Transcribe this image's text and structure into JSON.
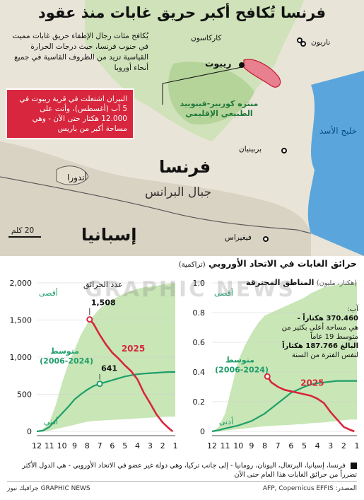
{
  "title": "فرنسا تُكافح أكبر حريق غابات منذ عقود",
  "intro": "يُكافح مئات رجال الإطفاء حريق غابات مميت في جنوب فرنسا، حيث درجات الحرارة القياسية تزيد من الظروف القاسية في جميع أنحاء أوروبا",
  "callout": "النيران اشتعلت في قرية ريبوت في 5 آب (أغسطس)، وأتت على 12.000 هكتار حتى الآن - وهي مساحة أكبر من باريس",
  "map_labels": {
    "carcassonne": "كاركاسون",
    "narbonne": "ناربون",
    "ribaute": "ريبوت",
    "park": "منتزه كوربير-فينوييد الطبيعي الإقليمي",
    "gulf": "خليج الأسد",
    "perpignan": "بربينيان",
    "france": "فرنسا",
    "andorra": "أندورا",
    "pyrenees": "جبال البرانس",
    "spain": "إسبانيا",
    "figueres": "فيغيراس",
    "scale": "20 كلم"
  },
  "section_title": "حرائق الغابات في الاتحاد الأوروبي",
  "section_sub": "(تراكمية)",
  "watermark": "GRAPHIC NEWS",
  "colors": {
    "accent": "#d7263d",
    "avg": "#1e9e6a",
    "band": "#c8e6b6",
    "map_land": "#e9e4d8",
    "map_green": "#bfd9a8",
    "sea": "#5aa6dc"
  },
  "chart_data": [
    {
      "type": "line",
      "title": "عدد الحرائق",
      "x": [
        1,
        2,
        3,
        4,
        5,
        6,
        7,
        8,
        9,
        10,
        11,
        12
      ],
      "xlabel": "",
      "ylabel": "",
      "ylim": [
        0,
        2000
      ],
      "yticks": [
        0,
        500,
        1000,
        1500,
        2000
      ],
      "yticklabels": [
        "0",
        "500",
        "1,000",
        "1,500",
        "2,000"
      ],
      "band_labels": {
        "max": "أقصى",
        "min": "أدنى"
      },
      "avg_label": "متوسط",
      "avg_years": "(2006-2024)",
      "series_2025_label": "2025",
      "annotations": {
        "value_2025": "1,508",
        "value_avg": "641"
      },
      "series": [
        {
          "name": "أقصى",
          "x": [
            1,
            1.5,
            2,
            2.5,
            3,
            3.5,
            4,
            4.5,
            5,
            5.5,
            6,
            6.5,
            7,
            7.5,
            8,
            8.5,
            9,
            9.5,
            10,
            10.5,
            11,
            11.5,
            12
          ],
          "values": [
            2000,
            1990,
            1980,
            1960,
            1950,
            1940,
            1920,
            1890,
            1860,
            1820,
            1770,
            1720,
            1650,
            1560,
            1450,
            1300,
            1100,
            900,
            650,
            350,
            120,
            30,
            0
          ]
        },
        {
          "name": "أدنى",
          "x": [
            1,
            1.5,
            2,
            2.5,
            3,
            3.5,
            4,
            4.5,
            5,
            5.5,
            6,
            6.5,
            7,
            7.5,
            8,
            8.5,
            9,
            9.5,
            10,
            10.5,
            11,
            11.5,
            12
          ],
          "values": [
            200,
            200,
            195,
            190,
            185,
            180,
            175,
            170,
            165,
            160,
            155,
            150,
            145,
            140,
            130,
            110,
            90,
            70,
            50,
            30,
            10,
            0,
            0
          ]
        },
        {
          "name": "متوسط",
          "x": [
            1,
            1.5,
            2,
            2.5,
            3,
            3.5,
            4,
            4.5,
            5,
            5.5,
            6,
            6.5,
            7,
            7.5,
            8,
            8.5,
            9,
            9.5,
            10,
            10.5,
            11,
            11.5,
            12
          ],
          "values": [
            800,
            800,
            795,
            790,
            785,
            778,
            770,
            755,
            740,
            715,
            690,
            665,
            641,
            610,
            560,
            500,
            430,
            330,
            240,
            150,
            60,
            10,
            0
          ]
        },
        {
          "name": "2025",
          "x": [
            7.8,
            7.5,
            7,
            6.5,
            6,
            5.5,
            5,
            4.5,
            4,
            3.5,
            3,
            2.5,
            2,
            1.5,
            1.2
          ],
          "values": [
            1508,
            1450,
            1300,
            1170,
            1060,
            980,
            890,
            810,
            700,
            520,
            380,
            230,
            120,
            40,
            0
          ]
        }
      ]
    },
    {
      "type": "line",
      "title": "المناطق المحترقة",
      "title_unit": "(هكتار، مليون)",
      "x": [
        1,
        2,
        3,
        4,
        5,
        6,
        7,
        8,
        9,
        10,
        11,
        12
      ],
      "xlabel": "",
      "ylabel": "",
      "ylim": [
        0,
        1.0
      ],
      "yticks": [
        0,
        0.2,
        0.4,
        0.6,
        0.8,
        1.0
      ],
      "yticklabels": [
        "0",
        "0.2",
        "0.4",
        "0.6",
        "0.8",
        "1.0"
      ],
      "band_labels": {
        "max": "أقصى",
        "min": "أدنى"
      },
      "avg_label": "متوسط",
      "avg_years": "(2006-2024)",
      "series_2025_label": "2025",
      "note": {
        "month": "آب:",
        "v1": "370.460 هكتاراً -",
        "t1": "هي مساحة أعلى بكثير من متوسط 19 عاماً",
        "v2": "البالغ 187.766 هكتاراً",
        "t2": "لنفس الفترة من السنة"
      },
      "series": [
        {
          "name": "أقصى",
          "x": [
            1,
            1.5,
            2,
            2.5,
            3,
            3.5,
            4,
            4.5,
            5,
            5.5,
            6,
            6.5,
            7,
            7.5,
            8,
            8.5,
            9,
            9.5,
            10,
            10.5,
            11,
            11.5,
            12
          ],
          "values": [
            1.0,
            1.0,
            0.99,
            0.99,
            0.98,
            0.97,
            0.95,
            0.93,
            0.9,
            0.88,
            0.86,
            0.84,
            0.82,
            0.8,
            0.78,
            0.73,
            0.66,
            0.58,
            0.48,
            0.3,
            0.12,
            0.03,
            0
          ]
        },
        {
          "name": "أدنى",
          "x": [
            1,
            1.5,
            2,
            2.5,
            3,
            3.5,
            4,
            4.5,
            5,
            5.5,
            6,
            6.5,
            7,
            7.5,
            8,
            8.5,
            9,
            9.5,
            10,
            10.5,
            11,
            11.5,
            12
          ],
          "values": [
            0.08,
            0.08,
            0.075,
            0.07,
            0.065,
            0.06,
            0.058,
            0.055,
            0.05,
            0.048,
            0.045,
            0.042,
            0.04,
            0.037,
            0.035,
            0.03,
            0.025,
            0.02,
            0.015,
            0.01,
            0.005,
            0,
            0
          ]
        },
        {
          "name": "متوسط",
          "x": [
            1,
            1.5,
            2,
            2.5,
            3,
            3.5,
            4,
            4.5,
            5,
            5.5,
            6,
            6.5,
            7,
            7.5,
            8,
            8.5,
            9,
            9.5,
            10,
            10.5,
            11,
            11.5,
            12
          ],
          "values": [
            0.34,
            0.34,
            0.34,
            0.34,
            0.335,
            0.33,
            0.325,
            0.315,
            0.3,
            0.28,
            0.26,
            0.225,
            0.19,
            0.155,
            0.12,
            0.095,
            0.07,
            0.055,
            0.04,
            0.03,
            0.02,
            0.008,
            0
          ]
        },
        {
          "name": "2025",
          "x": [
            7.8,
            7.5,
            7,
            6.5,
            6,
            5.5,
            5,
            4.5,
            4,
            3.5,
            3,
            2.5,
            2,
            1.5,
            1.2
          ],
          "values": [
            0.37,
            0.33,
            0.3,
            0.28,
            0.27,
            0.26,
            0.25,
            0.24,
            0.22,
            0.19,
            0.13,
            0.08,
            0.03,
            0.01,
            0
          ]
        }
      ]
    }
  ],
  "footnote": "فرنسا، إسبانيا، البرتغال، اليونان، رومانيا - إلى جانب تركيا، وهي دولة غير عضو في الاتحاد الأوروبي - هي الدول الأكثر تضرراً من حرائق الغابات هذا العام حتى الآن",
  "source": "المصدر: AFP, Copernicus EFFIS",
  "credit": "جرافيك نيوز GRAPHIC NEWS"
}
